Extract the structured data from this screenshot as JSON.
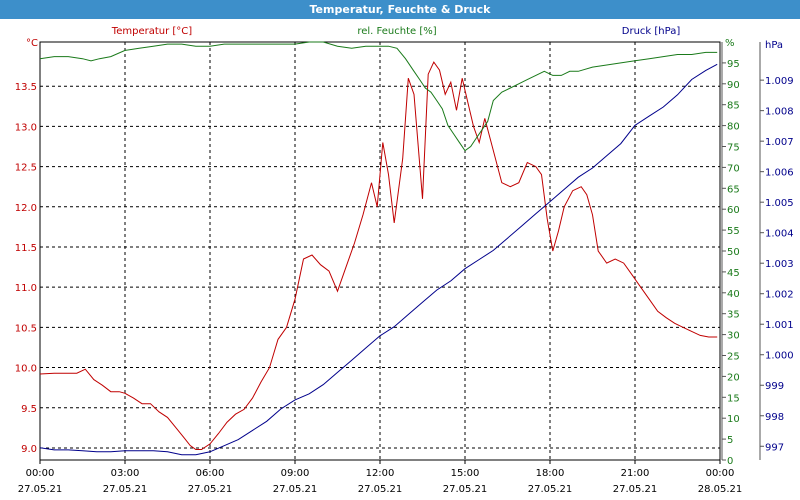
{
  "window": {
    "title": "Temperatur, Feuchte & Druck"
  },
  "chart_data": {
    "type": "line",
    "title": "Temperatur, Feuchte & Druck",
    "x_ticks": [
      {
        "time": "00:00",
        "date": "27.05.21",
        "h": 0
      },
      {
        "time": "03:00",
        "date": "27.05.21",
        "h": 3
      },
      {
        "time": "06:00",
        "date": "27.05.21",
        "h": 6
      },
      {
        "time": "09:00",
        "date": "27.05.21",
        "h": 9
      },
      {
        "time": "12:00",
        "date": "27.05.21",
        "h": 12
      },
      {
        "time": "15:00",
        "date": "27.05.21",
        "h": 15
      },
      {
        "time": "18:00",
        "date": "27.05.21",
        "h": 18
      },
      {
        "time": "21:00",
        "date": "27.05.21",
        "h": 21
      },
      {
        "time": "00:00",
        "date": "28.05.21",
        "h": 24
      }
    ],
    "xlim": [
      0,
      24
    ],
    "grid": true,
    "axes": {
      "temperature": {
        "label": "Temperatur [°C]",
        "unit": "°C",
        "color": "#c00000",
        "ylim": [
          8.85,
          14.05
        ],
        "ticks": [
          "9.0",
          "9.5",
          "10.0",
          "10.5",
          "11.0",
          "11.5",
          "12.0",
          "12.5",
          "13.0",
          "13.5"
        ]
      },
      "humidity": {
        "label": "rel. Feuchte [%]",
        "unit": "%",
        "color": "#1a7a1a",
        "ylim": [
          0,
          100
        ],
        "ticks": [
          "0",
          "5",
          "10",
          "15",
          "20",
          "25",
          "30",
          "35",
          "40",
          "45",
          "50",
          "55",
          "60",
          "65",
          "70",
          "75",
          "80",
          "85",
          "90",
          "95"
        ]
      },
      "pressure": {
        "label": "Druck [hPa]",
        "unit": "hPa",
        "color": "#00008b",
        "ylim": [
          996.55,
          1010.25
        ],
        "ticks": [
          "997",
          "998",
          "999",
          "1.000",
          "1.001",
          "1.002",
          "1.003",
          "1.004",
          "1.005",
          "1.006",
          "1.007",
          "1.008",
          "1.009"
        ]
      }
    },
    "series": [
      {
        "name": "Temperatur [°C]",
        "axis": "temperature",
        "color": "#c00000",
        "x": [
          0,
          0.5,
          1,
          1.3,
          1.6,
          1.9,
          2.2,
          2.5,
          2.8,
          3.0,
          3.3,
          3.6,
          3.9,
          4.2,
          4.5,
          4.8,
          5.1,
          5.3,
          5.5,
          5.7,
          6.0,
          6.3,
          6.6,
          6.9,
          7.2,
          7.5,
          7.8,
          8.1,
          8.4,
          8.7,
          9.0,
          9.3,
          9.6,
          9.9,
          10.2,
          10.5,
          10.8,
          11.1,
          11.4,
          11.7,
          11.9,
          12.1,
          12.3,
          12.5,
          12.8,
          13.0,
          13.2,
          13.5,
          13.7,
          13.9,
          14.1,
          14.3,
          14.5,
          14.7,
          14.9,
          15.1,
          15.3,
          15.5,
          15.7,
          16.0,
          16.3,
          16.6,
          16.9,
          17.2,
          17.5,
          17.7,
          17.9,
          18.1,
          18.3,
          18.5,
          18.8,
          19.1,
          19.3,
          19.5,
          19.7,
          20.0,
          20.3,
          20.6,
          20.9,
          21.2,
          21.5,
          21.8,
          22.1,
          22.4,
          22.7,
          23.0,
          23.3,
          23.6,
          23.9
        ],
        "values": [
          9.92,
          9.93,
          9.93,
          9.93,
          9.98,
          9.85,
          9.78,
          9.7,
          9.7,
          9.68,
          9.62,
          9.55,
          9.55,
          9.45,
          9.38,
          9.25,
          9.12,
          9.03,
          8.98,
          8.98,
          9.05,
          9.18,
          9.32,
          9.42,
          9.48,
          9.62,
          9.82,
          10.0,
          10.35,
          10.5,
          10.85,
          11.35,
          11.4,
          11.28,
          11.2,
          10.95,
          11.25,
          11.55,
          11.9,
          12.3,
          12.0,
          12.8,
          12.4,
          11.8,
          12.6,
          13.6,
          13.4,
          12.1,
          13.65,
          13.8,
          13.7,
          13.4,
          13.55,
          13.2,
          13.6,
          13.3,
          13.0,
          12.8,
          13.1,
          12.7,
          12.3,
          12.25,
          12.3,
          12.55,
          12.5,
          12.4,
          11.85,
          11.45,
          11.7,
          12.0,
          12.2,
          12.25,
          12.15,
          11.9,
          11.45,
          11.3,
          11.35,
          11.3,
          11.15,
          11.0,
          10.85,
          10.7,
          10.62,
          10.55,
          10.5,
          10.45,
          10.4,
          10.38,
          10.38
        ]
      },
      {
        "name": "rel. Feuchte [%]",
        "axis": "humidity",
        "color": "#1a7a1a",
        "x": [
          0,
          0.5,
          1,
          1.5,
          1.8,
          2.1,
          2.5,
          3.0,
          3.5,
          4.0,
          4.5,
          5.0,
          5.5,
          6.0,
          6.5,
          7.0,
          7.5,
          8.0,
          8.5,
          9.0,
          9.5,
          10.0,
          10.5,
          11.0,
          11.5,
          12.0,
          12.3,
          12.6,
          12.9,
          13.2,
          13.4,
          13.6,
          13.8,
          14.0,
          14.2,
          14.4,
          14.6,
          14.8,
          15.0,
          15.2,
          15.4,
          15.6,
          15.8,
          16.0,
          16.3,
          16.6,
          16.9,
          17.2,
          17.5,
          17.8,
          18.1,
          18.4,
          18.7,
          19.0,
          19.5,
          20.0,
          20.5,
          21.0,
          21.5,
          22.0,
          22.5,
          23.0,
          23.5,
          23.9
        ],
        "values": [
          96,
          96.5,
          96.5,
          96,
          95.5,
          96,
          96.5,
          98,
          98.5,
          99,
          99.5,
          99.5,
          99,
          99,
          99.5,
          99.5,
          99.5,
          99.5,
          99.5,
          99.5,
          100,
          100,
          99,
          98.5,
          99,
          99,
          99,
          98.5,
          96,
          93,
          91,
          89,
          88,
          86,
          84,
          80,
          78,
          76,
          74,
          75,
          77,
          79,
          81,
          86,
          88,
          89,
          90,
          91,
          92,
          93,
          92,
          92,
          93,
          93,
          94,
          94.5,
          95,
          95.5,
          96,
          96.5,
          97,
          97,
          97.5,
          97.5
        ]
      },
      {
        "name": "Druck [hPa]",
        "axis": "pressure",
        "color": "#00008b",
        "x": [
          0,
          0.5,
          1,
          1.5,
          2,
          2.5,
          3,
          3.5,
          4,
          4.5,
          5,
          5.5,
          6,
          6.5,
          7,
          7.5,
          8,
          8.5,
          9,
          9.5,
          10,
          10.5,
          11,
          11.5,
          12,
          12.5,
          13,
          13.5,
          14,
          14.5,
          15,
          15.5,
          16,
          16.5,
          17,
          17.5,
          18,
          18.5,
          19,
          19.5,
          20,
          20.5,
          21,
          21.5,
          22,
          22.5,
          23,
          23.5,
          23.9
        ],
        "values": [
          996.95,
          996.88,
          996.88,
          996.85,
          996.82,
          996.82,
          996.85,
          996.85,
          996.85,
          996.82,
          996.72,
          996.72,
          996.82,
          997.02,
          997.22,
          997.52,
          997.82,
          998.22,
          998.52,
          998.72,
          999.02,
          999.42,
          999.82,
          1000.22,
          1000.62,
          1000.92,
          1001.32,
          1001.72,
          1002.12,
          1002.42,
          1002.82,
          1003.12,
          1003.42,
          1003.82,
          1004.22,
          1004.62,
          1005.02,
          1005.42,
          1005.82,
          1006.12,
          1006.52,
          1006.92,
          1007.52,
          1007.82,
          1008.12,
          1008.52,
          1009.02,
          1009.32,
          1009.52
        ]
      }
    ]
  }
}
